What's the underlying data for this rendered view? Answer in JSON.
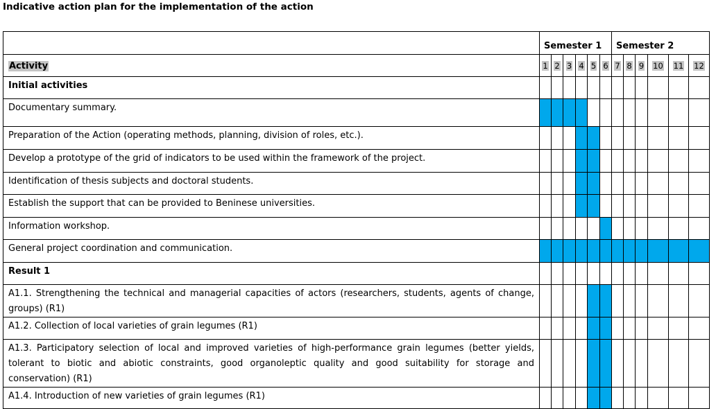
{
  "title": "Indicative action plan for the implementation of the action",
  "semesters": [
    "Semester 1",
    "Semester 2"
  ],
  "header": {
    "activity": "Activity",
    "months": [
      "1",
      "2",
      "3",
      "4",
      "5",
      "6",
      "7",
      "8",
      "9",
      "10",
      "11",
      "12"
    ]
  },
  "rows": [
    {
      "type": "section",
      "label": "Initial activities",
      "active": []
    },
    {
      "type": "activity",
      "label": "Documentary summary.",
      "active": [
        1,
        2,
        3,
        4
      ]
    },
    {
      "type": "activity",
      "label": "Preparation of the Action (operating methods, planning, division of roles, etc.).",
      "active": [
        4,
        5
      ]
    },
    {
      "type": "activity",
      "label": "Develop a prototype of the grid of indicators to be used within the framework of the project.",
      "active": [
        4,
        5
      ]
    },
    {
      "type": "activity",
      "label": "Identification of thesis subjects and doctoral students.",
      "active": [
        4,
        5
      ]
    },
    {
      "type": "activity",
      "label": "Establish the support that can be provided to Beninese universities.",
      "active": [
        4,
        5
      ]
    },
    {
      "type": "activity",
      "label": "Information workshop.",
      "active": [
        6
      ]
    },
    {
      "type": "activity",
      "label": "General project coordination and communication.",
      "active": [
        1,
        2,
        3,
        4,
        5,
        6,
        7,
        8,
        9,
        10,
        11,
        12
      ]
    },
    {
      "type": "section",
      "label": "Result 1",
      "active": []
    },
    {
      "type": "activity",
      "label": "A1.1. Strengthening the technical and managerial capacities of actors (researchers, students, agents of change, groups) (R1)",
      "active": [
        5,
        6
      ]
    },
    {
      "type": "activity",
      "label": "A1.2. Collection of local varieties of grain legumes (R1)",
      "active": [
        5,
        6
      ]
    },
    {
      "type": "activity",
      "label": "A1.3. Participatory selection of local and improved varieties of high-performance grain legumes (better yields, tolerant to biotic and abiotic constraints, good organoleptic quality and good suitability for storage and conservation) (R1)",
      "active": [
        5,
        6
      ]
    },
    {
      "type": "activity",
      "label": "A1.4. Introduction of new varieties of grain legumes (R1)",
      "active": [
        5,
        6
      ]
    }
  ],
  "colors": {
    "active_cell": "#00a8ec",
    "header_highlight": "#c4c4c4"
  }
}
